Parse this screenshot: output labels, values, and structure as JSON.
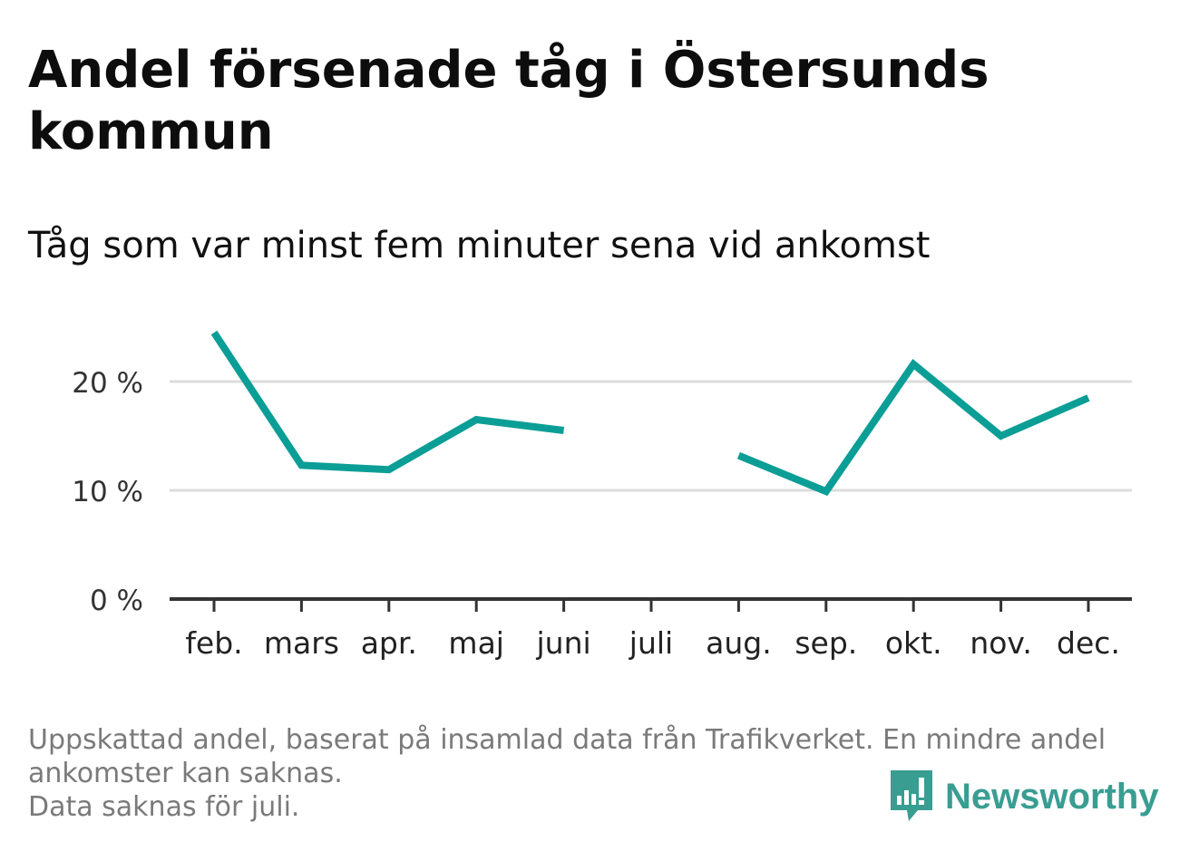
{
  "title": "Andel försenade tåg i Östersunds kommun",
  "subtitle": "Tåg som var minst fem minuter sena vid ankomst",
  "footnote": {
    "line1": "Uppskattad andel, baserat på insamlad data från Trafikverket. En mindre andel ankomster kan saknas.",
    "line2": "Data saknas för juli."
  },
  "logo": {
    "text": "Newsworthy",
    "icon": "newsworthy-chart-bubble-icon",
    "color": "#3a9d92"
  },
  "chart_data": {
    "type": "line",
    "categories": [
      "feb.",
      "mars",
      "apr.",
      "maj",
      "juni",
      "juli",
      "aug.",
      "sep.",
      "okt.",
      "nov.",
      "dec."
    ],
    "series": [
      {
        "values": [
          24.5,
          12.3,
          11.9,
          16.5,
          15.5,
          null,
          13.2,
          9.9,
          21.6,
          15.0,
          18.5
        ],
        "color": "#0b9e96"
      }
    ],
    "yticks": [
      {
        "value": 0,
        "label": "0 %"
      },
      {
        "value": 10,
        "label": "10 %"
      },
      {
        "value": 20,
        "label": "20 %"
      }
    ],
    "ylim": [
      0,
      25
    ],
    "grid": true,
    "gridColor": "#dcdcdc",
    "axisColor": "#333333"
  }
}
